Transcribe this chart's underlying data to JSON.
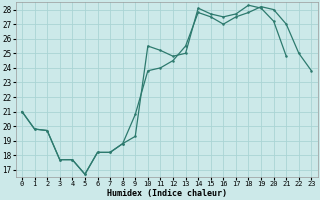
{
  "xlabel": "Humidex (Indice chaleur)",
  "bg_color": "#cce9e9",
  "grid_color": "#aad4d4",
  "line_color": "#2d7a6e",
  "xlim": [
    -0.5,
    23.5
  ],
  "ylim": [
    16.5,
    28.5
  ],
  "xticks": [
    0,
    1,
    2,
    3,
    4,
    5,
    6,
    7,
    8,
    9,
    10,
    11,
    12,
    13,
    14,
    15,
    16,
    17,
    18,
    19,
    20,
    21,
    22,
    23
  ],
  "yticks": [
    17,
    18,
    19,
    20,
    21,
    22,
    23,
    24,
    25,
    26,
    27,
    28
  ],
  "line1_x": [
    0,
    1,
    2,
    3,
    4,
    5,
    6,
    7,
    8,
    9,
    10,
    11,
    12,
    13,
    14,
    15,
    16,
    17,
    18,
    19,
    20,
    21,
    22,
    23
  ],
  "line1_y": [
    21.0,
    19.8,
    19.7,
    17.7,
    17.7,
    16.7,
    18.2,
    18.2,
    18.8,
    20.8,
    23.8,
    24.0,
    24.5,
    25.5,
    27.8,
    27.5,
    27.0,
    27.5,
    27.8,
    28.2,
    28.0,
    27.0,
    25.0,
    23.8
  ],
  "line2_x": [
    0,
    1,
    2,
    3,
    4,
    5,
    6,
    7,
    8,
    9,
    10,
    11,
    12,
    13,
    14,
    15,
    16,
    17,
    18,
    19,
    20,
    21
  ],
  "line2_y": [
    21.0,
    19.8,
    19.7,
    17.7,
    17.7,
    16.7,
    18.2,
    18.2,
    18.8,
    19.3,
    25.5,
    25.2,
    24.8,
    25.0,
    28.1,
    27.7,
    27.5,
    27.7,
    28.3,
    28.1,
    27.2,
    24.8
  ]
}
